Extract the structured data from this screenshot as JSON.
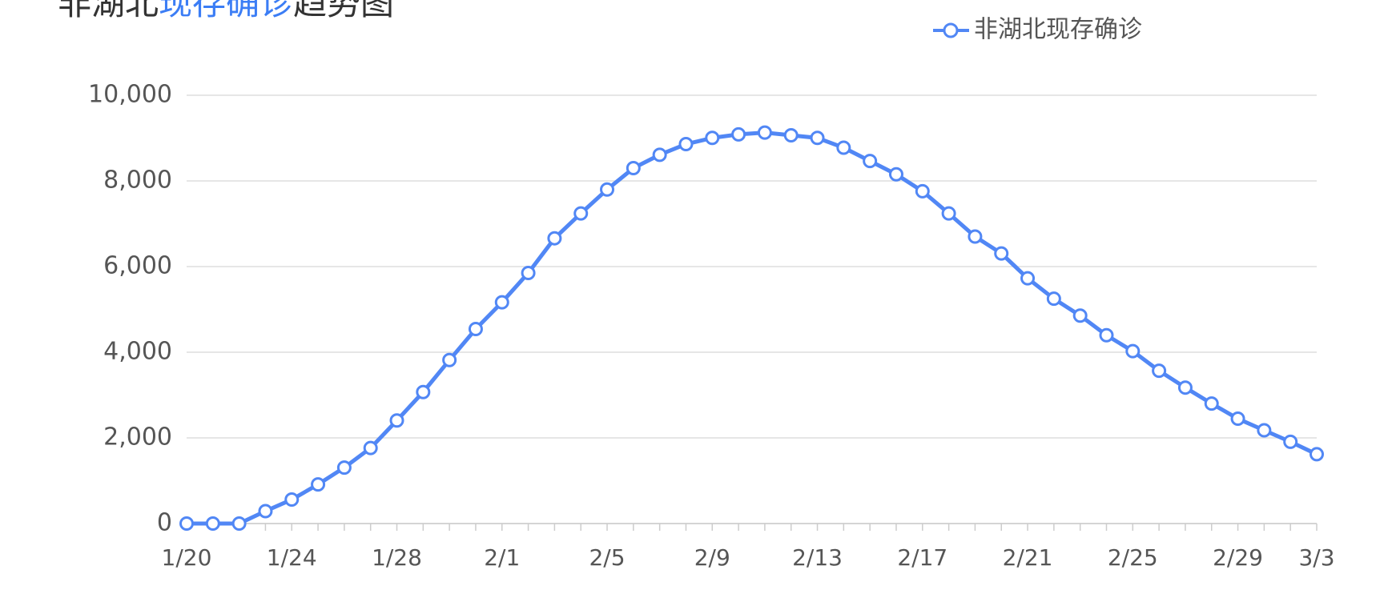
{
  "chart_data": {
    "type": "line",
    "title": {
      "part1": "非湖北",
      "part2": "现存确诊",
      "part3": "趋势图"
    },
    "categories": [
      "1/20",
      null,
      null,
      null,
      "1/24",
      null,
      null,
      null,
      "1/28",
      null,
      null,
      null,
      "2/1",
      null,
      null,
      null,
      "2/5",
      null,
      null,
      null,
      "2/9",
      null,
      null,
      null,
      "2/13",
      null,
      null,
      null,
      "2/17",
      null,
      null,
      null,
      "2/21",
      null,
      null,
      null,
      "2/25",
      null,
      null,
      null,
      "2/29",
      null,
      null,
      "3/3"
    ],
    "series": [
      {
        "name": "非湖北现存确诊",
        "color": "#5187f5",
        "values": [
          0,
          0,
          0,
          290,
          560,
          913,
          1307,
          1763,
          2407,
          3070,
          3817,
          4543,
          5166,
          5851,
          6660,
          7241,
          7800,
          8299,
          8610,
          8859,
          9004,
          9087,
          9129,
          9066,
          9004,
          8776,
          8465,
          8154,
          7759,
          7241,
          6701,
          6307,
          5726,
          5249,
          4855,
          4398,
          4025,
          3568,
          3174,
          2801,
          2448,
          2178,
          1909,
          1618
        ]
      }
    ],
    "ylim": [
      0,
      10000
    ],
    "yticks": [
      0,
      {
        "value": 2000,
        "label": "2,000"
      },
      {
        "value": 4000,
        "label": "4,000"
      },
      {
        "value": 6000,
        "label": "6,000"
      },
      {
        "value": 8000,
        "label": "8,000"
      },
      {
        "value": 10000,
        "label": "10,000"
      }
    ],
    "grid": true,
    "legend": "top-right"
  }
}
